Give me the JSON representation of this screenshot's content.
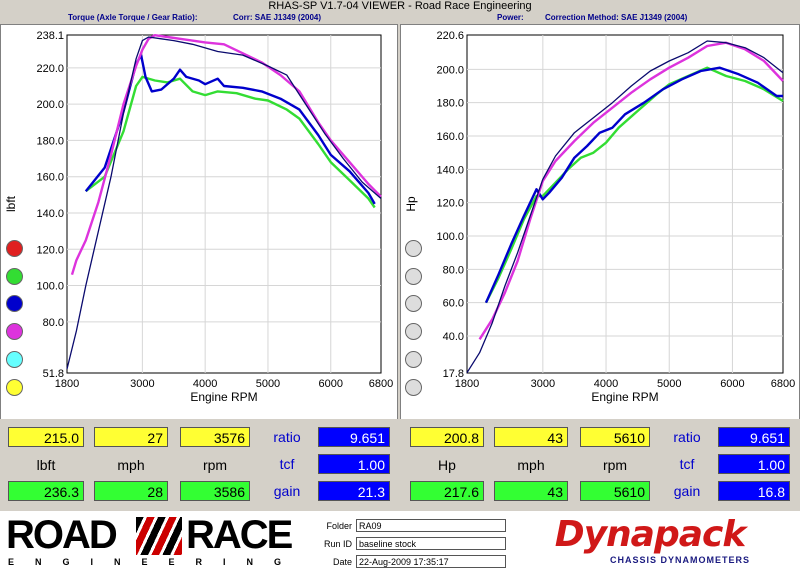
{
  "window": {
    "title": "RHAS-SP V1.7-04  VIEWER - Road Race Engineering"
  },
  "left_panel": {
    "header_left": "Torque (Axle Torque / Gear Ratio):",
    "header_right": "Corr: SAE J1349 (2004)"
  },
  "right_panel": {
    "header_left": "Power:",
    "header_right": "Correction Method: SAE J1349 (2004)"
  },
  "run_colors": [
    "#e02020",
    "#33dd33",
    "#0000cc",
    "#dd33dd",
    "#66ffff",
    "#ffff33"
  ],
  "chart_data": [
    {
      "type": "line",
      "xlabel": "Engine RPM",
      "ylabel": "lbft",
      "xlim": [
        1800,
        6800
      ],
      "ylim": [
        51.8,
        238.1
      ],
      "x_ticks": [
        "1800",
        "3000",
        "4000",
        "5000",
        "6000",
        "6800"
      ],
      "y_ticks": [
        "238.1",
        "220.0",
        "200.0",
        "180.0",
        "160.0",
        "140.0",
        "120.0",
        "100.0",
        "80.0",
        "51.8"
      ],
      "grid": true,
      "series": [
        {
          "color": "#33dd33",
          "points": [
            [
              2100,
              152
            ],
            [
              2400,
              160
            ],
            [
              2700,
              185
            ],
            [
              2900,
              210
            ],
            [
              3000,
              215
            ],
            [
              3200,
              213
            ],
            [
              3400,
              212
            ],
            [
              3600,
              214
            ],
            [
              3800,
              207
            ],
            [
              4000,
              205
            ],
            [
              4200,
              207
            ],
            [
              4500,
              206
            ],
            [
              4800,
              203
            ],
            [
              5000,
              202
            ],
            [
              5300,
              197
            ],
            [
              5500,
              192
            ],
            [
              5800,
              178
            ],
            [
              6000,
              168
            ],
            [
              6300,
              158
            ],
            [
              6600,
              148
            ],
            [
              6700,
              143
            ]
          ]
        },
        {
          "color": "#0000cc",
          "points": [
            [
              2100,
              152
            ],
            [
              2400,
              165
            ],
            [
              2700,
              196
            ],
            [
              2900,
              222
            ],
            [
              2980,
              227
            ],
            [
              3050,
              215
            ],
            [
              3150,
              207
            ],
            [
              3300,
              208
            ],
            [
              3500,
              214
            ],
            [
              3600,
              219
            ],
            [
              3700,
              215
            ],
            [
              3900,
              213
            ],
            [
              4000,
              211
            ],
            [
              4200,
              214
            ],
            [
              4300,
              210
            ],
            [
              4600,
              209
            ],
            [
              4900,
              207
            ],
            [
              5200,
              203
            ],
            [
              5500,
              197
            ],
            [
              5800,
              183
            ],
            [
              6000,
              172
            ],
            [
              6300,
              163
            ],
            [
              6600,
              151
            ],
            [
              6700,
              145
            ]
          ]
        },
        {
          "color": "#dd33dd",
          "points": [
            [
              1880,
              106
            ],
            [
              1950,
              114
            ],
            [
              2100,
              125
            ],
            [
              2300,
              146
            ],
            [
              2500,
              172
            ],
            [
              2700,
              200
            ],
            [
              2900,
              221
            ],
            [
              3000,
              230
            ],
            [
              3100,
              236
            ],
            [
              3200,
              238
            ],
            [
              3400,
              237
            ],
            [
              3600,
              236
            ],
            [
              4000,
              234
            ],
            [
              4300,
              233
            ],
            [
              4600,
              228
            ],
            [
              4900,
              223
            ],
            [
              5200,
              216
            ],
            [
              5500,
              207
            ],
            [
              5800,
              190
            ],
            [
              6000,
              180
            ],
            [
              6300,
              168
            ],
            [
              6600,
              156
            ],
            [
              6800,
              149
            ]
          ]
        },
        {
          "color": "#0a0a6e",
          "points": [
            [
              1800,
              54
            ],
            [
              1950,
              75
            ],
            [
              2100,
              100
            ],
            [
              2300,
              130
            ],
            [
              2500,
              160
            ],
            [
              2700,
              195
            ],
            [
              2900,
              225
            ],
            [
              3000,
              235
            ],
            [
              3100,
              237
            ],
            [
              3300,
              236
            ],
            [
              3500,
              235
            ],
            [
              3800,
              233
            ],
            [
              4200,
              229
            ],
            [
              4600,
              227
            ],
            [
              5000,
              221
            ],
            [
              5300,
              216
            ],
            [
              5600,
              200
            ],
            [
              5900,
              184
            ],
            [
              6200,
              170
            ],
            [
              6500,
              157
            ],
            [
              6800,
              148
            ]
          ]
        }
      ]
    },
    {
      "type": "line",
      "xlabel": "Engine RPM",
      "ylabel": "Hp",
      "xlim": [
        1800,
        6800
      ],
      "ylim": [
        17.8,
        220.6
      ],
      "x_ticks": [
        "1800",
        "3000",
        "4000",
        "5000",
        "6000",
        "6800"
      ],
      "y_ticks": [
        "220.6",
        "200.0",
        "180.0",
        "160.0",
        "140.0",
        "120.0",
        "100.0",
        "80.0",
        "60.0",
        "40.0",
        "17.8"
      ],
      "grid": true,
      "series": [
        {
          "color": "#33dd33",
          "points": [
            [
              2100,
              60
            ],
            [
              2300,
              75
            ],
            [
              2500,
              92
            ],
            [
              2700,
              110
            ],
            [
              2900,
              124
            ],
            [
              3000,
              124
            ],
            [
              3200,
              132
            ],
            [
              3400,
              140
            ],
            [
              3600,
              147
            ],
            [
              3800,
              150
            ],
            [
              4000,
              156
            ],
            [
              4200,
              165
            ],
            [
              4500,
              175
            ],
            [
              4800,
              185
            ],
            [
              5000,
              191
            ],
            [
              5300,
              196
            ],
            [
              5600,
              201
            ],
            [
              5900,
              196
            ],
            [
              6200,
              193
            ],
            [
              6500,
              188
            ],
            [
              6800,
              181
            ]
          ]
        },
        {
          "color": "#0000cc",
          "points": [
            [
              2100,
              60
            ],
            [
              2300,
              77
            ],
            [
              2500,
              95
            ],
            [
              2700,
              112
            ],
            [
              2900,
              128
            ],
            [
              3000,
              122
            ],
            [
              3100,
              126
            ],
            [
              3300,
              135
            ],
            [
              3500,
              147
            ],
            [
              3700,
              154
            ],
            [
              3900,
              162
            ],
            [
              4100,
              165
            ],
            [
              4300,
              173
            ],
            [
              4600,
              180
            ],
            [
              4900,
              188
            ],
            [
              5200,
              194
            ],
            [
              5500,
              199
            ],
            [
              5800,
              201
            ],
            [
              6100,
              197
            ],
            [
              6400,
              192
            ],
            [
              6700,
              184
            ],
            [
              6800,
              184
            ]
          ]
        },
        {
          "color": "#dd33dd",
          "points": [
            [
              2000,
              38
            ],
            [
              2200,
              50
            ],
            [
              2400,
              66
            ],
            [
              2600,
              85
            ],
            [
              2800,
              110
            ],
            [
              3000,
              133
            ],
            [
              3200,
              145
            ],
            [
              3500,
              157
            ],
            [
              3800,
              168
            ],
            [
              4100,
              177
            ],
            [
              4400,
              186
            ],
            [
              4700,
              194
            ],
            [
              5000,
              201
            ],
            [
              5300,
              207
            ],
            [
              5600,
              214
            ],
            [
              5900,
              216
            ],
            [
              6200,
              212
            ],
            [
              6500,
              205
            ],
            [
              6800,
              193
            ]
          ]
        },
        {
          "color": "#0a0a6e",
          "points": [
            [
              1800,
              18
            ],
            [
              2000,
              30
            ],
            [
              2200,
              48
            ],
            [
              2400,
              70
            ],
            [
              2600,
              90
            ],
            [
              2800,
              112
            ],
            [
              3000,
              134
            ],
            [
              3200,
              148
            ],
            [
              3500,
              162
            ],
            [
              3800,
              171
            ],
            [
              4100,
              180
            ],
            [
              4400,
              190
            ],
            [
              4700,
              199
            ],
            [
              5000,
              205
            ],
            [
              5300,
              210
            ],
            [
              5600,
              217
            ],
            [
              5900,
              216
            ],
            [
              6200,
              213
            ],
            [
              6500,
              207
            ],
            [
              6800,
              198
            ]
          ]
        }
      ]
    }
  ],
  "readouts_left": {
    "cursor": [
      "215.0",
      "27",
      "3576"
    ],
    "units": [
      "lbft",
      "mph",
      "rpm"
    ],
    "max": [
      "236.3",
      "28",
      "3586"
    ],
    "ratio_label": "ratio",
    "ratio_value": "9.651",
    "tcf_label": "tcf",
    "tcf_value": "1.00",
    "gain_label": "gain",
    "gain_value": "21.3"
  },
  "readouts_right": {
    "cursor": [
      "200.8",
      "43",
      "5610"
    ],
    "units": [
      "Hp",
      "mph",
      "rpm"
    ],
    "max": [
      "217.6",
      "43",
      "5610"
    ],
    "ratio_label": "ratio",
    "ratio_value": "9.651",
    "tcf_label": "tcf",
    "tcf_value": "1.00",
    "gain_label": "gain",
    "gain_value": "16.8"
  },
  "footer": {
    "logo_top_left": "ROAD",
    "logo_top_right": "RACE",
    "logo_bottom": "ENGINEERING",
    "folder_label": "Folder",
    "folder_value": "RA09",
    "runid_label": "Run ID",
    "runid_value": "baseline stock",
    "date_label": "Date",
    "date_value": "22-Aug-2009  17:35:17",
    "brand": "Dynapack",
    "brand_sub": "CHASSIS DYNAMOMETERS"
  }
}
